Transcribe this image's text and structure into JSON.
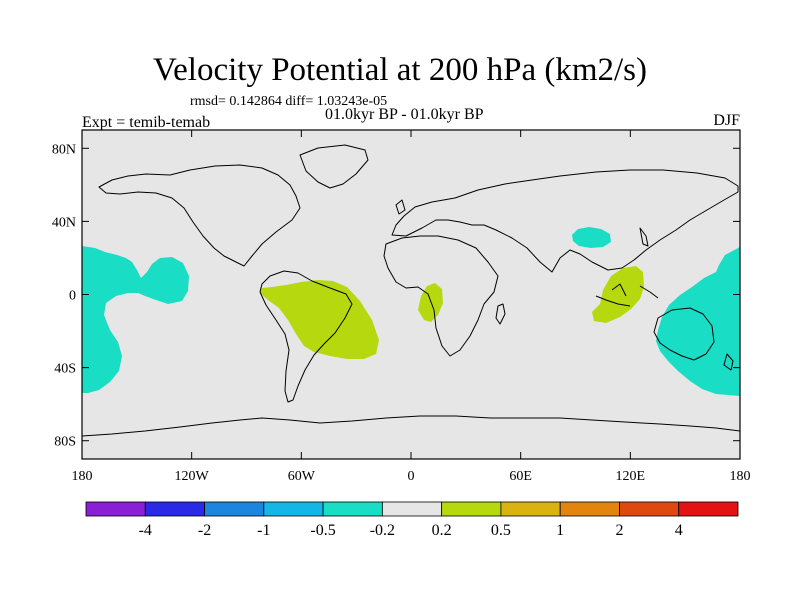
{
  "title": "Velocity Potential at 200 hPa (km2/s)",
  "stats_line": "rmsd= 0.142864  diff= 1.03243e-05",
  "period_line": "01.0kyr BP - 01.0kyr BP",
  "experiment_label": "Expt = temib-temab",
  "season_label": "DJF",
  "axes": {
    "lat_ticks": [
      {
        "value": 80,
        "label": "80N"
      },
      {
        "value": 40,
        "label": "40N"
      },
      {
        "value": 0,
        "label": "0"
      },
      {
        "value": -40,
        "label": "40S"
      },
      {
        "value": -80,
        "label": "80S"
      }
    ],
    "lon_ticks": [
      {
        "value": -180,
        "label": "180"
      },
      {
        "value": -120,
        "label": "120W"
      },
      {
        "value": -60,
        "label": "60W"
      },
      {
        "value": 0,
        "label": "0"
      },
      {
        "value": 60,
        "label": "60E"
      },
      {
        "value": 120,
        "label": "120E"
      },
      {
        "value": 180,
        "label": "180"
      }
    ]
  },
  "colorbar": {
    "colors": [
      "#8a1fd6",
      "#2a2ae6",
      "#1b86e0",
      "#14b6e8",
      "#19ddc4",
      "#e6e6e6",
      "#b6d80f",
      "#dab313",
      "#e3840f",
      "#de4a0e",
      "#e31313"
    ],
    "labels": [
      "-4",
      "-2",
      "-1",
      "-0.5",
      "-0.2",
      "0.2",
      "0.5",
      "1",
      "2",
      "4"
    ]
  },
  "map": {
    "background_color": "#e6e6e6",
    "regions": [
      {
        "name": "central-pacific-negative",
        "category": "-0.5 to -0.2"
      },
      {
        "name": "western-pacific-australia-negative",
        "category": "-0.5 to -0.2"
      },
      {
        "name": "east-asia-negative",
        "category": "-0.5 to -0.2"
      },
      {
        "name": "south-america-positive",
        "category": "0.2 to 0.5"
      },
      {
        "name": "west-africa-positive",
        "category": "0.2 to 0.5"
      },
      {
        "name": "maritime-continent-positive",
        "category": "0.2 to 0.5"
      }
    ]
  }
}
